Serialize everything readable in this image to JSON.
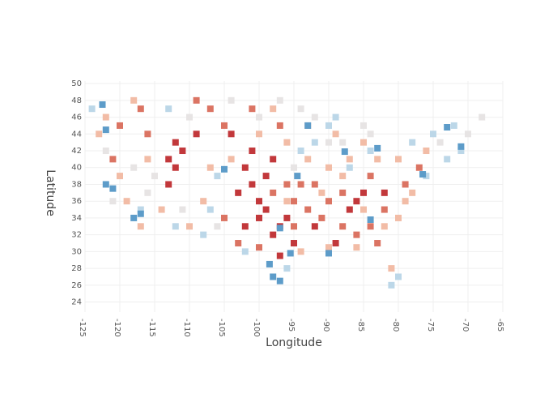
{
  "chart_data": {
    "type": "scatter",
    "x_label": "Longitude",
    "y_label": "Latitude",
    "xlim": [
      -125,
      -65
    ],
    "xticks": [
      -125,
      -120,
      -115,
      -110,
      -105,
      -100,
      -95,
      -90,
      -85,
      -80,
      -75,
      -70,
      -65
    ],
    "ylim": [
      22.8,
      50.3
    ],
    "yticks": [
      24,
      26,
      28,
      30,
      32,
      34,
      36,
      38,
      40,
      42,
      44,
      46,
      48,
      50
    ],
    "grid": true,
    "series": [
      {
        "color": "#f2bca6",
        "x": [
          -122,
          -118,
          -116,
          -119,
          -117,
          -114,
          -110,
          -107,
          -104,
          -100,
          -96,
          -93,
          -90,
          -87,
          -85,
          -83,
          -80,
          -78,
          -80,
          -82,
          -86,
          -90,
          -94,
          -96,
          -93,
          -89,
          -123,
          -120,
          -108,
          -98,
          -76,
          -81,
          -88,
          -91,
          -85,
          -79
        ],
        "values": [
          46,
          48,
          41,
          36,
          33,
          35,
          33,
          40,
          41,
          44,
          43,
          41,
          40,
          41,
          43,
          41,
          41,
          37,
          34,
          33,
          30.5,
          30.5,
          30,
          36,
          45,
          44,
          44,
          39,
          36,
          47,
          42,
          28,
          39,
          37,
          35,
          36
        ]
      },
      {
        "color": "#e7e4e4",
        "x": [
          -118,
          -115,
          -116,
          -110,
          -100,
          -97,
          -94,
          -92,
          -85,
          -84,
          -111,
          -106,
          -90,
          -74,
          -70,
          -68,
          -122,
          -95,
          -88,
          -121,
          -104
        ],
        "values": [
          40,
          39,
          37,
          46,
          46,
          48,
          47,
          46,
          45,
          44,
          35,
          33,
          43,
          43,
          44,
          46,
          42,
          40,
          43,
          36,
          48
        ]
      },
      {
        "color": "#bcd7e8",
        "x": [
          -94,
          -90,
          -92,
          -89,
          -73,
          -75,
          -71,
          -72,
          -78,
          -76,
          -81,
          -80,
          -112,
          -108,
          -107,
          -124,
          -96,
          -102,
          -87,
          -84,
          -106,
          -113,
          -117
        ],
        "values": [
          42,
          45,
          43,
          46,
          41,
          44,
          42,
          45,
          43,
          39,
          26,
          27,
          33,
          32,
          35,
          47,
          28,
          30,
          40,
          42,
          39,
          47,
          35
        ]
      },
      {
        "color": "#db7463",
        "x": [
          -107,
          -105,
          -109,
          -98,
          -96,
          -95,
          -93,
          -91,
          -88,
          -86,
          -84,
          -83,
          -90,
          -94,
          -92,
          -101,
          -117,
          -120,
          -116,
          -105,
          -103,
          -97,
          -88,
          -82,
          -79,
          -77,
          -84,
          -95,
          -100,
          -121
        ],
        "values": [
          47,
          45,
          48,
          37,
          38,
          36,
          35,
          34,
          33,
          32,
          33,
          31,
          36,
          38,
          38,
          47,
          47,
          45,
          44,
          34,
          31,
          45,
          37,
          35,
          38,
          40,
          39,
          33,
          30.5,
          41
        ]
      },
      {
        "color": "#c2383b",
        "x": [
          -102,
          -101,
          -100,
          -99,
          -98,
          -100,
          -97,
          -98,
          -101,
          -103,
          -99,
          -113,
          -112,
          -111,
          -112,
          -113,
          -96,
          -95,
          -86,
          -85,
          -87,
          -104,
          -109,
          -102,
          -97,
          -92,
          -82,
          -89
        ],
        "values": [
          40,
          38,
          36,
          39,
          41,
          34,
          33,
          32,
          42,
          37,
          35,
          38,
          40,
          42,
          43,
          41,
          34,
          31,
          36,
          37,
          35,
          44,
          44,
          33,
          29.5,
          33,
          37,
          31
        ]
      },
      {
        "color": "#5d9cc9",
        "x": [
          -122,
          -121,
          -118,
          -117,
          -122.5,
          -98,
          -97,
          -98.5,
          -87.7,
          -71,
          -73,
          -94.5,
          -90,
          -95.5,
          -84,
          -105,
          -97,
          -93,
          -83,
          -122,
          -76.5
        ],
        "values": [
          38,
          37.5,
          34,
          34.5,
          47.5,
          27,
          26.5,
          28.5,
          41.9,
          42.5,
          44.8,
          39,
          29.8,
          29.8,
          33.8,
          39.8,
          32.8,
          45,
          42.3,
          44.5,
          39.2
        ]
      }
    ]
  }
}
